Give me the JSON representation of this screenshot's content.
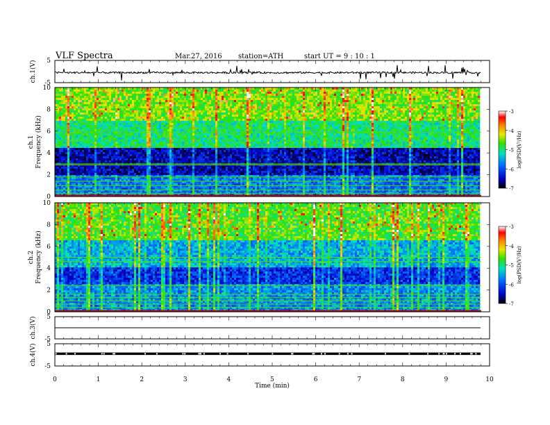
{
  "header": {
    "title": "VLF  Spectra",
    "date": "Mar.27, 2016",
    "station": "station=ATH",
    "start": "start  UT =   9 : 10 : 1"
  },
  "chart_data": [
    {
      "type": "line",
      "ylabel": "ch.1(V)",
      "ylim": [
        -5,
        5
      ],
      "y_ticks": [
        "5",
        "-5"
      ],
      "baseline": -0.5,
      "description_level": "noisy"
    },
    {
      "type": "heatmap",
      "ylabel": "Frequency  (kHz)",
      "channel_label": "ch.1",
      "ylim": [
        0,
        10
      ],
      "y_ticks": [
        "0",
        "2",
        "4",
        "6",
        "8",
        "10"
      ],
      "colorbar": {
        "label": "log(PSD(V²/Hz)",
        "range": [
          -7,
          -3
        ],
        "ticks": [
          "-3",
          "-4",
          "-5",
          "-6",
          "-7"
        ]
      }
    },
    {
      "type": "heatmap",
      "ylabel": "Frequency  (kHz)",
      "channel_label": "ch.2",
      "ylim": [
        0,
        10
      ],
      "y_ticks": [
        "0",
        "2",
        "4",
        "6",
        "8",
        "10"
      ],
      "colorbar": {
        "label": "log(PSD(V²/Hz)",
        "range": [
          -7,
          -3
        ],
        "ticks": [
          "-3",
          "-4",
          "-5",
          "-6",
          "-7"
        ]
      }
    },
    {
      "type": "line",
      "ylabel": "ch.3(V)",
      "ylim": [
        -5,
        5
      ],
      "y_ticks": [
        "5",
        "-5"
      ],
      "baseline": 0
    },
    {
      "type": "line",
      "ylabel": "ch.4(V)",
      "ylim": [
        -5,
        5
      ],
      "y_ticks": [
        "5",
        "-5"
      ],
      "baseline": 0.5
    }
  ],
  "x_axis": {
    "label": "Time  (min)",
    "range": [
      0,
      10
    ],
    "ticks": [
      "0",
      "1",
      "2",
      "3",
      "4",
      "5",
      "6",
      "7",
      "8",
      "9",
      "10"
    ],
    "data_end": 9.8
  }
}
